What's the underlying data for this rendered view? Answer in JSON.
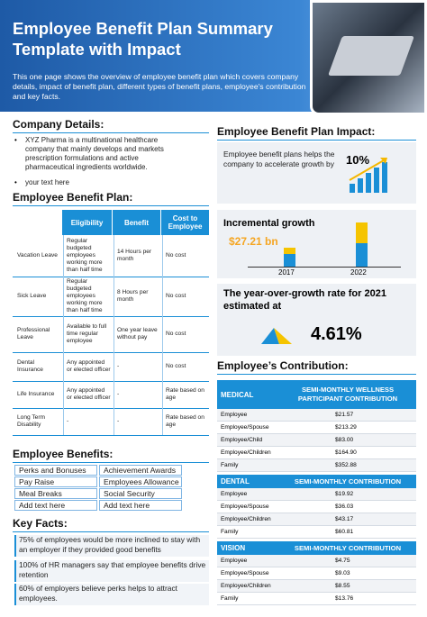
{
  "header": {
    "title": "Employee Benefit Plan Summary Template with Impact",
    "description": "This one page shows the overview of employee benefit plan which covers company details, impact of benefit plan, different types of benefit plans, employee's contribution and key facts."
  },
  "company_details": {
    "heading": "Company Details:",
    "bullets": [
      "XYZ Pharma is a multinational healthcare company that mainly develops and markets prescription formulations and active pharmaceutical ingredients worldwide.",
      "your text here"
    ]
  },
  "benefit_plan": {
    "heading": "Employee Benefit Plan:",
    "columns": [
      "Eligibility",
      "Benefit",
      "Cost to Employee"
    ],
    "rows": [
      [
        "Vacation Leave",
        "Regular budgeted employees working more than half time",
        "14 Hours per month",
        "No cost"
      ],
      [
        "Sick Leave",
        "Regular budgeted employees working more than half time",
        "8 Hours per month",
        "No cost"
      ],
      [
        "Professional Leave",
        "Available to full time regular employee",
        "One year leave without pay",
        "No cost"
      ],
      [
        "Dental Insurance",
        "Any appointed or elected officer",
        "-",
        "No cost"
      ],
      [
        "Life Insurance",
        "Any appointed or elected officer",
        "-",
        "Rate based on age"
      ],
      [
        "Long Term Disability",
        "-",
        "-",
        "Rate based on age"
      ]
    ]
  },
  "employee_benefits": {
    "heading": "Employee Benefits:",
    "items": [
      "Perks and Bonuses",
      "Achievement Awards",
      "Pay Raise",
      "Employees Allowance",
      "Meal Breaks",
      "Social Security",
      "Add text here",
      "Add text here"
    ]
  },
  "key_facts": {
    "heading": "Key Facts:",
    "items": [
      "75% of employees would be more inclined to stay with an employer if they provided good benefits",
      "100% of HR managers say that employee benefits drive retention",
      "60% of employers believe perks helps to attract employees."
    ]
  },
  "impact": {
    "heading": "Employee Benefit Plan Impact:",
    "text": "Employee benefit plans helps the company to accelerate growth by",
    "stat": "10%"
  },
  "incremental_growth": {
    "title": "Incremental growth",
    "value": "$27.21 bn",
    "years": [
      "2017",
      "2022"
    ]
  },
  "yoy": {
    "text": "The year-over-growth rate for 2021 estimated at",
    "value": "4.61%"
  },
  "contribution": {
    "heading": "Employee’s Contribution:",
    "tables": [
      {
        "plan": "MEDICAL",
        "column": "SEMI-MONTHLY WELLNESS PARTICIPANT CONTRIBUTION",
        "rows": [
          [
            "Employee",
            "$21.57"
          ],
          [
            "Employee/Spouse",
            "$213.29"
          ],
          [
            "Employee/Child",
            "$83.00"
          ],
          [
            "Employee/Children",
            "$164.90"
          ],
          [
            "Family",
            "$352.88"
          ]
        ]
      },
      {
        "plan": "DENTAL",
        "column": "SEMI-MONTHLY CONTRIBUTION",
        "rows": [
          [
            "Employee",
            "$19.92"
          ],
          [
            "Employee/Spouse",
            "$36.03"
          ],
          [
            "Employee/Children",
            "$43.17"
          ],
          [
            "Family",
            "$60.81"
          ]
        ]
      },
      {
        "plan": "VISION",
        "column": "SEMI-MONTHLY CONTRIBUTION",
        "rows": [
          [
            "Employee",
            "$4.75"
          ],
          [
            "Employee/Spouse",
            "$9.03"
          ],
          [
            "Employee/Children",
            "$8.55"
          ],
          [
            "Family",
            "$13.76"
          ]
        ]
      }
    ]
  }
}
